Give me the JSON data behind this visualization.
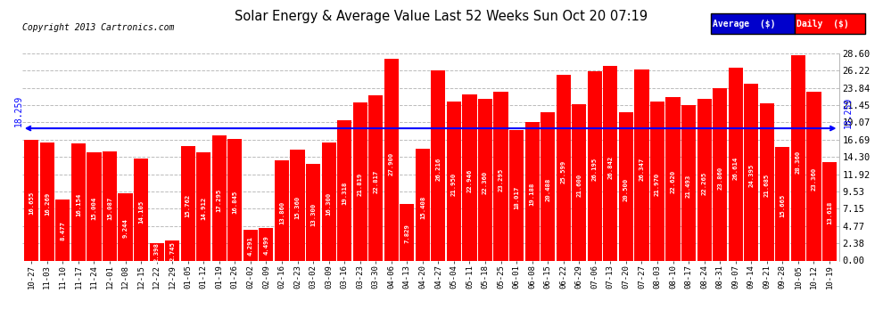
{
  "title": "Solar Energy & Average Value Last 52 Weeks Sun Oct 20 07:19",
  "copyright": "Copyright 2013 Cartronics.com",
  "average_value": 18.259,
  "average_label": "18.259",
  "bar_color": "#FF0000",
  "average_line_color": "#0000FF",
  "background_color": "#FFFFFF",
  "grid_color": "#BBBBBB",
  "ylim": [
    0.0,
    28.6
  ],
  "yticks": [
    0.0,
    2.38,
    4.77,
    7.15,
    9.53,
    11.92,
    14.3,
    16.69,
    19.07,
    21.45,
    23.84,
    26.22,
    28.6
  ],
  "legend_avg_color": "#0000CC",
  "legend_daily_color": "#FF0000",
  "weeks": [
    {
      "label": "10-27",
      "value": 16.655
    },
    {
      "label": "11-03",
      "value": 16.269
    },
    {
      "label": "11-10",
      "value": 8.477
    },
    {
      "label": "11-17",
      "value": 16.154
    },
    {
      "label": "11-24",
      "value": 15.004
    },
    {
      "label": "12-01",
      "value": 15.087
    },
    {
      "label": "12-08",
      "value": 9.244
    },
    {
      "label": "12-15",
      "value": 14.105
    },
    {
      "label": "12-22",
      "value": 2.398
    },
    {
      "label": "12-29",
      "value": 2.745
    },
    {
      "label": "01-05",
      "value": 15.762
    },
    {
      "label": "01-12",
      "value": 14.912
    },
    {
      "label": "01-19",
      "value": 17.295
    },
    {
      "label": "01-26",
      "value": 16.845
    },
    {
      "label": "02-02",
      "value": 4.291
    },
    {
      "label": "02-09",
      "value": 4.499
    },
    {
      "label": "02-16",
      "value": 13.86
    },
    {
      "label": "02-23",
      "value": 15.36
    },
    {
      "label": "03-02",
      "value": 13.3
    },
    {
      "label": "03-09",
      "value": 16.3
    },
    {
      "label": "03-16",
      "value": 19.318
    },
    {
      "label": "03-23",
      "value": 21.819
    },
    {
      "label": "03-30",
      "value": 22.817
    },
    {
      "label": "04-06",
      "value": 27.9
    },
    {
      "label": "04-13",
      "value": 7.829
    },
    {
      "label": "04-20",
      "value": 15.408
    },
    {
      "label": "04-27",
      "value": 26.216
    },
    {
      "label": "05-04",
      "value": 21.95
    },
    {
      "label": "05-11",
      "value": 22.946
    },
    {
      "label": "05-18",
      "value": 22.36
    },
    {
      "label": "05-25",
      "value": 23.295
    },
    {
      "label": "06-01",
      "value": 18.017
    },
    {
      "label": "06-08",
      "value": 19.188
    },
    {
      "label": "06-15",
      "value": 20.488
    },
    {
      "label": "06-22",
      "value": 25.599
    },
    {
      "label": "06-29",
      "value": 21.6
    },
    {
      "label": "07-06",
      "value": 26.195
    },
    {
      "label": "07-13",
      "value": 26.842
    },
    {
      "label": "07-20",
      "value": 20.5
    },
    {
      "label": "07-27",
      "value": 26.347
    },
    {
      "label": "08-03",
      "value": 21.97
    },
    {
      "label": "08-10",
      "value": 22.62
    },
    {
      "label": "08-17",
      "value": 21.493
    },
    {
      "label": "08-24",
      "value": 22.265
    },
    {
      "label": "08-31",
      "value": 23.86
    },
    {
      "label": "09-07",
      "value": 26.614
    },
    {
      "label": "09-14",
      "value": 24.395
    },
    {
      "label": "09-21",
      "value": 21.685
    },
    {
      "label": "09-28",
      "value": 15.665
    },
    {
      "label": "10-05",
      "value": 28.36
    },
    {
      "label": "10-12",
      "value": 23.36
    },
    {
      "label": "10-19",
      "value": 13.618
    }
  ]
}
